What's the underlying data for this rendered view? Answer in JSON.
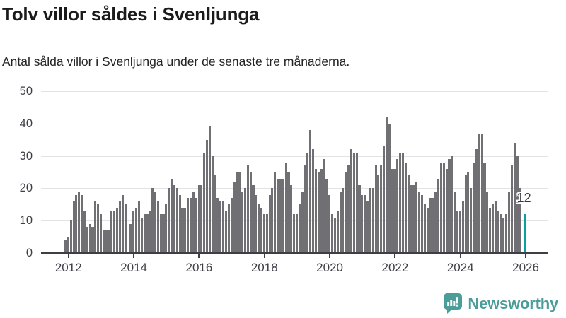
{
  "header": {
    "title": "Tolv villor såldes i Svenljunga",
    "subtitle": "Antal sålda villor i Svenljunga under de senaste tre månaderna."
  },
  "chart_data": {
    "type": "bar",
    "title": "Tolv villor såldes i Svenljunga",
    "subtitle": "Antal sålda villor i Svenljunga under de senaste tre månaderna.",
    "x_start": "2011-12",
    "frequency": "monthly",
    "ylim": [
      0,
      50
    ],
    "y_ticks": [
      0,
      10,
      20,
      30,
      40,
      50
    ],
    "x_tick_labels": [
      "2012",
      "2014",
      "2016",
      "2018",
      "2020",
      "2022",
      "2024",
      "2026"
    ],
    "grid": true,
    "legend": false,
    "bar_color": "#6F6F74",
    "highlight_color": "#0AA19D",
    "highlight_index": 169,
    "highlight_value": 12,
    "annotation": {
      "text": "12"
    },
    "values": [
      4,
      5,
      10,
      16,
      18,
      19,
      18,
      13,
      8,
      9,
      8,
      16,
      15,
      12,
      7,
      7,
      7,
      13,
      13,
      14,
      16,
      18,
      15,
      null,
      9,
      13,
      14,
      16,
      11,
      12,
      12,
      13,
      20,
      19,
      16,
      12,
      12,
      15,
      20,
      23,
      21,
      20,
      18,
      14,
      14,
      17,
      17,
      19,
      17,
      21,
      21,
      31,
      35,
      39,
      30,
      24,
      17,
      16,
      16,
      13,
      15,
      17,
      22,
      25,
      25,
      19,
      20,
      27,
      25,
      21,
      18,
      15,
      14,
      12,
      12,
      18,
      20,
      25,
      23,
      23,
      23,
      28,
      25,
      21,
      12,
      12,
      15,
      19,
      27,
      31,
      38,
      32,
      26,
      25,
      26,
      29,
      23,
      18,
      12,
      11,
      13,
      19,
      20,
      25,
      27,
      32,
      31,
      31,
      21,
      18,
      18,
      16,
      20,
      20,
      27,
      24,
      27,
      33,
      42,
      40,
      26,
      26,
      29,
      31,
      31,
      28,
      24,
      21,
      21,
      22,
      19,
      18,
      15,
      14,
      17,
      17,
      19,
      23,
      28,
      28,
      26,
      29,
      30,
      19,
      13,
      13,
      16,
      24,
      25,
      20,
      28,
      32,
      37,
      37,
      28,
      19,
      14,
      15,
      16,
      13,
      12,
      11,
      12,
      19,
      27,
      34,
      30,
      20,
      null,
      12
    ]
  },
  "branding": {
    "name": "Newsworthy",
    "color": "#4B9D99",
    "icon": "newsworthy-speech-bubble-chart-icon"
  }
}
